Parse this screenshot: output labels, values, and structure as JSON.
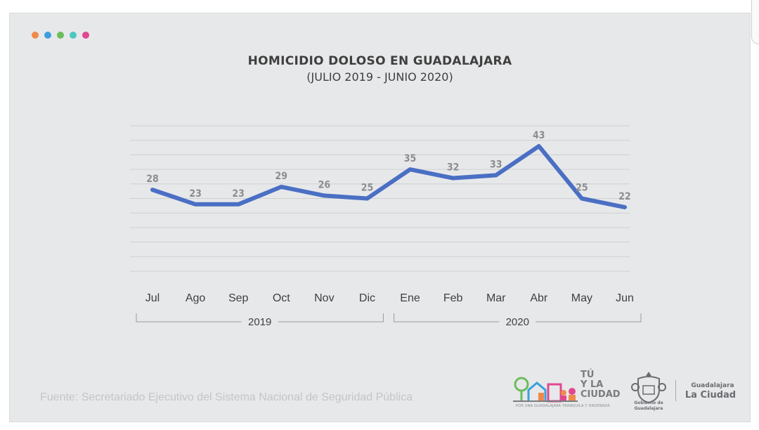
{
  "chart_data": {
    "type": "line",
    "title": "HOMICIDIO DOLOSO EN GUADALAJARA",
    "subtitle": "(JULIO 2019 - JUNIO 2020)",
    "categories": [
      "Jul",
      "Ago",
      "Sep",
      "Oct",
      "Nov",
      "Dic",
      "Ene",
      "Feb",
      "Mar",
      "Abr",
      "May",
      "Jun"
    ],
    "series": [
      {
        "values": [
          28,
          23,
          23,
          29,
          26,
          25,
          35,
          32,
          33,
          43,
          25,
          22
        ]
      }
    ],
    "year_groups": [
      {
        "label": "2019",
        "from": 0,
        "to": 5
      },
      {
        "label": "2020",
        "from": 6,
        "to": 11
      }
    ],
    "ylim": [
      0,
      50
    ],
    "grid": true,
    "legend": "none",
    "line_color": "#4a6fc4",
    "data_label_color": "#8c8d90",
    "tick_label_color": "#3f3f3f",
    "grid_color": "#cfd0d2"
  },
  "decor_dots": [
    "#f08a4b",
    "#3aa0dc",
    "#6bbd5a",
    "#4fc7c0",
    "#e0488f"
  ],
  "source": "Fuente: Secretariado Ejecutivo del Sistema Nacional de Seguridad Pública",
  "logos": {
    "tu_line1": "TÚ",
    "tu_line2": "Y LA",
    "tu_line3": "CIUDAD",
    "tu_tagline": "POR UNA GUADALAJARA TRANQUILA Y ORDENADA",
    "seal_line1": "Gobierno de",
    "seal_line2": "Guadalajara",
    "gdl_small": "Guadalajara",
    "gdl_big": "La Ciudad"
  }
}
